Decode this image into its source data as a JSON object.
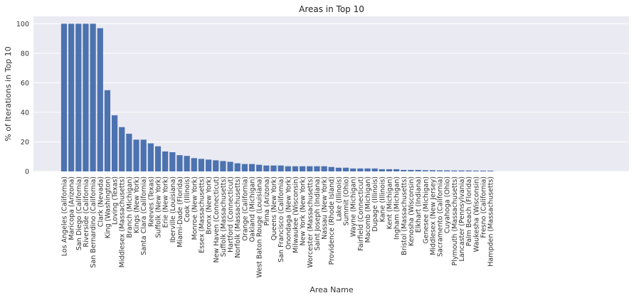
{
  "chart_data": {
    "type": "bar",
    "title": "Areas in Top 10",
    "xlabel": "Area Name",
    "ylabel": "% of Iterations in Top 10",
    "ylim": [
      0,
      105
    ],
    "yticks": [
      0,
      20,
      40,
      60,
      80,
      100
    ],
    "grid": true,
    "bar_color": "#4c72b0",
    "background_color": "#eaeaf2",
    "categories": [
      "Los Angeles (California)",
      "Maricopa (Arizona)",
      "San Diego (California)",
      "Riverside (California)",
      "San Bernardino (California)",
      "Clark (Nevada)",
      "King (Washington)",
      "Loving (Texas)",
      "Middlesex (Massachusetts)",
      "Branch (Michigan)",
      "Kings (New York)",
      "Santa Clara (California)",
      "Reeves (Texas)",
      "Suffolk (New York)",
      "Erie (New York)",
      "Iberville (Louisiana)",
      "Miami-Dade (Florida)",
      "Cook (Illinois)",
      "Monroe (New York)",
      "Essex (Massachusetts)",
      "Bronx (New York)",
      "New Haven (Connecticut)",
      "Suffolk (Massachusetts)",
      "Hartford (Connecticut)",
      "Norfolk (Massachusetts)",
      "Orange (California)",
      "Oakland (Michigan)",
      "West Baton Rouge (Louisiana)",
      "Pima (Arizona)",
      "Queens (New York)",
      "San Francisco (California)",
      "Onondaga (New York)",
      "Milwaukee (Wisconsin)",
      "New York (New York)",
      "Worcester (Massachusetts)",
      "Saint Joseph (Indiana)",
      "Nassau (New York)",
      "Providence (Rhode Island)",
      "Lake (Illinois)",
      "Summit (Ohio)",
      "Wayne (Michigan)",
      "Fairfield (Connecticut)",
      "Macomb (Michigan)",
      "Dupage (Illinois)",
      "Kane (Illinois)",
      "Kent (Michigan)",
      "Ingham (Michigan)",
      "Bristol (Massachusetts)",
      "Kenosha (Wisconsin)",
      "Elkhart (Indiana)",
      "Genesee (Michigan)",
      "Middlesex (New Jersey)",
      "Sacramento (California)",
      "Cuyahoga (Ohio)",
      "Plymouth (Massachusetts)",
      "Lancaster (Pennsylvania)",
      "Palm Beach (Florida)",
      "Waukesha (Wisconsin)",
      "Fresno (California)",
      "Hampden (Massachusetts)"
    ],
    "values": [
      100,
      100,
      100,
      100,
      100,
      97,
      55,
      38,
      30,
      25.5,
      21.5,
      21.5,
      19,
      17,
      13.5,
      13,
      11,
      10.5,
      9,
      8.5,
      8,
      7.5,
      7,
      6.5,
      5.5,
      5,
      5,
      4.5,
      4,
      4,
      4,
      3.5,
      3.5,
      3.5,
      3.5,
      3.5,
      3.5,
      3,
      2.5,
      2.5,
      2,
      2,
      2,
      2,
      1.5,
      1.5,
      1.5,
      1,
      1,
      1,
      0.8,
      0.8,
      0.7,
      0.7,
      0.6,
      0.6,
      0.6,
      0.5,
      0.5,
      0.5
    ]
  }
}
